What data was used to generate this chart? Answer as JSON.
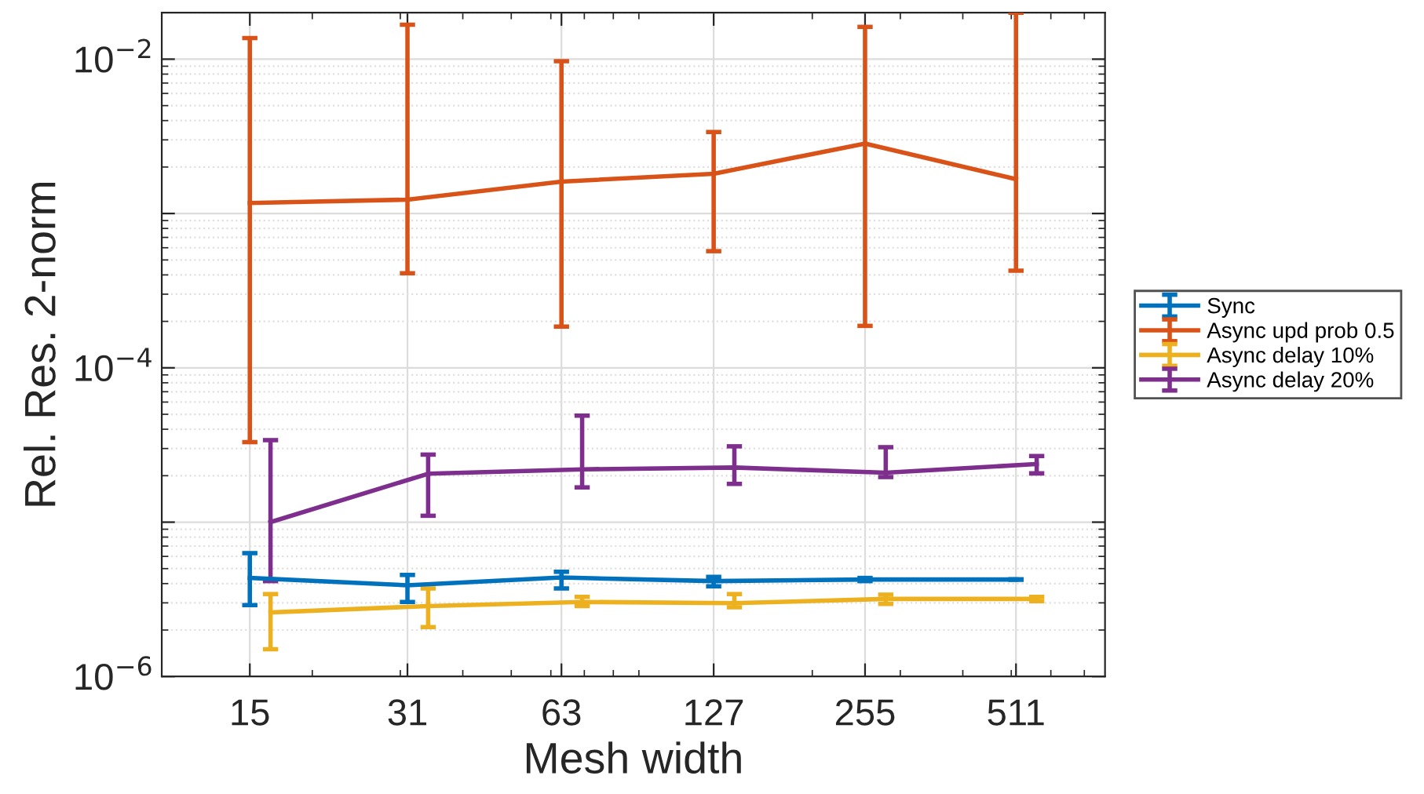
{
  "chart_data": {
    "type": "line",
    "xlabel": "Mesh width",
    "ylabel": "Rel. Res. 2-norm",
    "log": "xy",
    "xlim": [
      10,
      770
    ],
    "xticks": [
      15,
      31,
      63,
      127,
      255,
      511
    ],
    "ylim": [
      1e-06,
      0.02
    ],
    "yticks": [
      {
        "value": 1e-06,
        "label": "10$^{−6}$"
      },
      {
        "value": 1e-05,
        "label": null
      },
      {
        "value": 0.0001,
        "label": "10$^{−4}$"
      },
      {
        "value": 0.001,
        "label": null
      },
      {
        "value": 0.01,
        "label": "10$^{−2}$"
      }
    ],
    "grid": true,
    "legend": "right",
    "marker": "none",
    "line_style": "solid",
    "series": [
      {
        "name": "Sync",
        "color": "#0072bd",
        "x": [
          15,
          31,
          63,
          127,
          255,
          511
        ],
        "values": [
          4.35e-06,
          3.9e-06,
          4.38e-06,
          4.15e-06,
          4.25e-06,
          4.25e-06
        ],
        "errors": [
          [
            2.9e-06,
            6.3e-06
          ],
          [
            3.04e-06,
            4.55e-06
          ],
          [
            3.72e-06,
            4.77e-06
          ],
          [
            3.84e-06,
            4.42e-06
          ],
          [
            4.15e-06,
            4.35e-06
          ],
          null
        ]
      },
      {
        "name": "Async upd prob 0.5",
        "color": "#d95319",
        "x": [
          15,
          31,
          63,
          127,
          255,
          511
        ],
        "values": [
          0.00117,
          0.00123,
          0.00161,
          0.00181,
          0.00284,
          0.00167
        ],
        "errors": [
          [
            3.3e-05,
            0.0137
          ],
          [
            0.00041,
            0.0167
          ],
          [
            0.000185,
            0.0097
          ],
          [
            0.00057,
            0.00337
          ],
          [
            0.000187,
            0.0162
          ],
          [
            0.000426,
            0.02
          ]
        ]
      },
      {
        "name": "Async delay 10%",
        "color": "#edb120",
        "x": [
          16.5,
          34.1,
          69.3,
          139.7,
          280.5,
          562.1
        ],
        "values": [
          2.6e-06,
          2.86e-06,
          3.04e-06,
          2.99e-06,
          3.18e-06,
          3.18e-06
        ],
        "errors": [
          [
            1.5e-06,
            3.42e-06
          ],
          [
            2.09e-06,
            3.72e-06
          ],
          [
            2.86e-06,
            3.28e-06
          ],
          [
            2.81e-06,
            3.42e-06
          ],
          [
            2.95e-06,
            3.39e-06
          ],
          [
            3.08e-06,
            3.28e-06
          ]
        ]
      },
      {
        "name": "Async delay 20%",
        "color": "#7e2f8e",
        "x": [
          16.5,
          34.1,
          69.3,
          139.7,
          280.5,
          562.1
        ],
        "values": [
          1e-05,
          2.06e-05,
          2.2e-05,
          2.26e-05,
          2.09e-05,
          2.38e-05
        ],
        "errors": [
          [
            4.15e-06,
            3.4e-05
          ],
          [
            1.1e-05,
            2.74e-05
          ],
          [
            1.68e-05,
            4.9e-05
          ],
          [
            1.77e-05,
            3.1e-05
          ],
          [
            1.96e-05,
            3.06e-05
          ],
          [
            2.07e-05,
            2.68e-05
          ]
        ]
      }
    ]
  }
}
